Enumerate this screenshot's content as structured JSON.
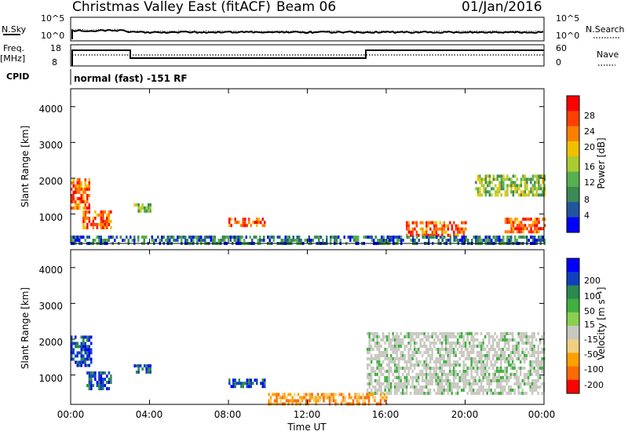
{
  "header": {
    "station": "Christmas Valley East (fitACF)",
    "beam": "Beam 06",
    "date": "01/Jan/2016"
  },
  "status_panels": {
    "nsky_label": "N.Sky",
    "nsky_ticks": [
      "10^5",
      "10^0"
    ],
    "nsearch_label": "N.Search",
    "nsearch_ticks": [
      "10^5",
      "10^0"
    ],
    "freq_label": "Freq.",
    "freq_unit": "[MHz]",
    "freq_ticks": [
      "18",
      "8"
    ],
    "nave_label": "Nave",
    "nave_ticks": [
      "60",
      "0"
    ],
    "cpid_label": "CPID",
    "cpid_value": "normal (fast) -151 RF"
  },
  "colors": {
    "power": [
      "#0000ff",
      "#2255a0",
      "#3b8a55",
      "#55b050",
      "#a8cc30",
      "#f0c000",
      "#ff8000",
      "#ff4000",
      "#ff0000"
    ],
    "velocity": [
      "#ff0000",
      "#ff6a00",
      "#ffa000",
      "#f0d080",
      "#c8c8c0",
      "#8ad050",
      "#40b040",
      "#2a8a50",
      "#1040c0",
      "#0000ff"
    ]
  },
  "chart_data": [
    {
      "type": "heatmap",
      "title": "Power",
      "xlabel": "Time UT",
      "ylabel": "Slant Range [km]",
      "x_ticks": [
        "00:00",
        "04:00",
        "08:00",
        "12:00",
        "16:00",
        "20:00",
        "00:00"
      ],
      "y_ticks": [
        "1000",
        "2000",
        "3000",
        "4000"
      ],
      "ylim": [
        180,
        4500
      ],
      "colorbar_label": "Power [dB]",
      "colorbar_ticks": [
        "4",
        "8",
        "12",
        "16",
        "20",
        "24",
        "28"
      ],
      "regions": [
        {
          "t": [
            0.0,
            0.9
          ],
          "r": [
            1200,
            2000
          ],
          "level": "high"
        },
        {
          "t": [
            0.6,
            2.0
          ],
          "r": [
            600,
            1100
          ],
          "level": "high"
        },
        {
          "t": [
            3.2,
            4.0
          ],
          "r": [
            1100,
            1300
          ],
          "level": "medium"
        },
        {
          "t": [
            8.0,
            9.8
          ],
          "r": [
            650,
            900
          ],
          "level": "high"
        },
        {
          "t": [
            17.0,
            20.0
          ],
          "r": [
            400,
            800
          ],
          "level": "high"
        },
        {
          "t": [
            20.5,
            24.0
          ],
          "r": [
            1500,
            2100
          ],
          "level": "medium"
        },
        {
          "t": [
            22.0,
            24.0
          ],
          "r": [
            500,
            900
          ],
          "level": "high"
        },
        {
          "t": [
            0.0,
            24.0
          ],
          "r": [
            200,
            400
          ],
          "level": "low"
        }
      ]
    },
    {
      "type": "heatmap",
      "title": "Velocity",
      "xlabel": "Time UT",
      "ylabel": "Slant Range [km]",
      "x_ticks": [
        "00:00",
        "04:00",
        "08:00",
        "12:00",
        "16:00",
        "20:00",
        "00:00"
      ],
      "y_ticks": [
        "1000",
        "2000",
        "3000",
        "4000"
      ],
      "ylim": [
        180,
        4500
      ],
      "colorbar_label": "Velocity [m s⁻¹]",
      "colorbar_ticks": [
        "200",
        "100",
        "50",
        "15",
        "-15",
        "-50",
        "-100",
        "-200"
      ],
      "regions": [
        {
          "t": [
            0.0,
            1.0
          ],
          "r": [
            1300,
            2100
          ],
          "level": "positive-high"
        },
        {
          "t": [
            0.8,
            2.0
          ],
          "r": [
            600,
            1100
          ],
          "level": "positive-high"
        },
        {
          "t": [
            3.2,
            4.0
          ],
          "r": [
            1100,
            1300
          ],
          "level": "positive-high"
        },
        {
          "t": [
            8.0,
            9.8
          ],
          "r": [
            650,
            900
          ],
          "level": "positive-high"
        },
        {
          "t": [
            15.0,
            24.0
          ],
          "r": [
            500,
            2200
          ],
          "level": "near-zero"
        },
        {
          "t": [
            10.0,
            16.0
          ],
          "r": [
            200,
            500
          ],
          "level": "negative-low"
        }
      ]
    }
  ]
}
